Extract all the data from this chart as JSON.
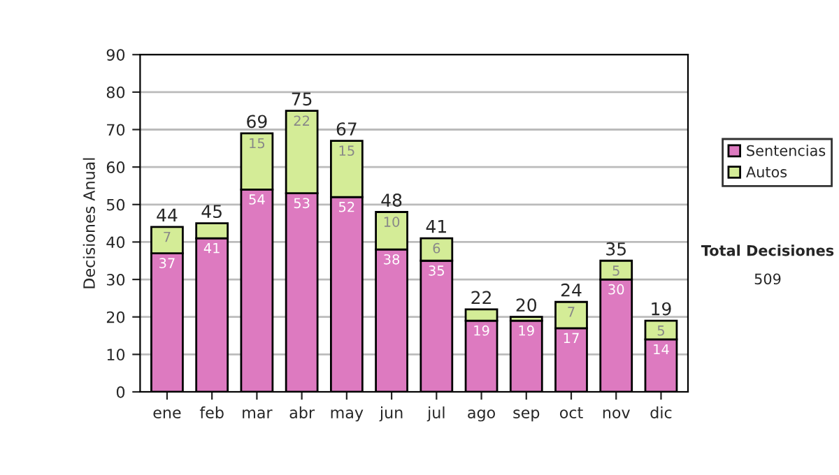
{
  "chart_data": {
    "type": "bar",
    "stacked": true,
    "ylabel": "Decisiones Anual",
    "categories": [
      "ene",
      "feb",
      "mar",
      "abr",
      "may",
      "jun",
      "jul",
      "ago",
      "sep",
      "oct",
      "nov",
      "dic"
    ],
    "series": [
      {
        "name": "Sentencias",
        "color": "#dd7ac0",
        "values": [
          37,
          41,
          54,
          53,
          52,
          38,
          35,
          19,
          19,
          17,
          30,
          14
        ],
        "value_labels": [
          "37",
          "41",
          "54",
          "53",
          "52",
          "38",
          "35",
          "19",
          "19",
          "17",
          "30",
          "14"
        ]
      },
      {
        "name": "Autos",
        "color": "#d4ec97",
        "values": [
          7,
          4,
          15,
          22,
          15,
          10,
          6,
          3,
          1,
          7,
          5,
          5
        ],
        "value_labels": [
          "7",
          null,
          "15",
          "22",
          "15",
          "10",
          "6",
          null,
          null,
          "7",
          "5",
          "5"
        ]
      }
    ],
    "totals": [
      "44",
      "45",
      "69",
      "75",
      "67",
      "48",
      "41",
      "22",
      "20",
      "24",
      "35",
      "19"
    ],
    "ylim": [
      0,
      90
    ],
    "yticks": [
      0,
      10,
      20,
      30,
      40,
      50,
      60,
      70,
      80,
      90
    ],
    "grid": "y",
    "legend": "right",
    "annotations": [
      "Total Decisiones",
      "509"
    ]
  }
}
